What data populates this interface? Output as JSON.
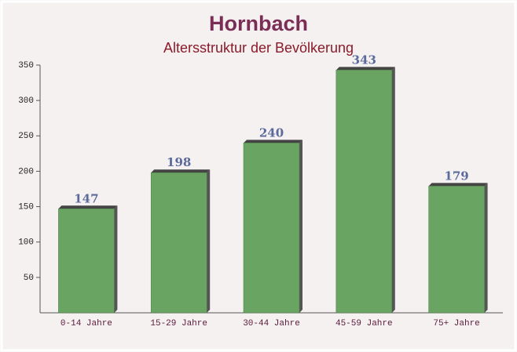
{
  "chart_data": {
    "type": "bar",
    "title": "Hornbach",
    "subtitle": "Altersstruktur der Bevölkerung",
    "categories": [
      "0-14 Jahre",
      "15-29 Jahre",
      "30-44 Jahre",
      "45-59 Jahre",
      "75+ Jahre"
    ],
    "values": [
      147,
      198,
      240,
      343,
      179
    ],
    "color": "#6aa463",
    "ylim": [
      0,
      350
    ],
    "yticks": [
      50,
      100,
      150,
      200,
      250,
      300,
      350
    ],
    "grid": false
  }
}
